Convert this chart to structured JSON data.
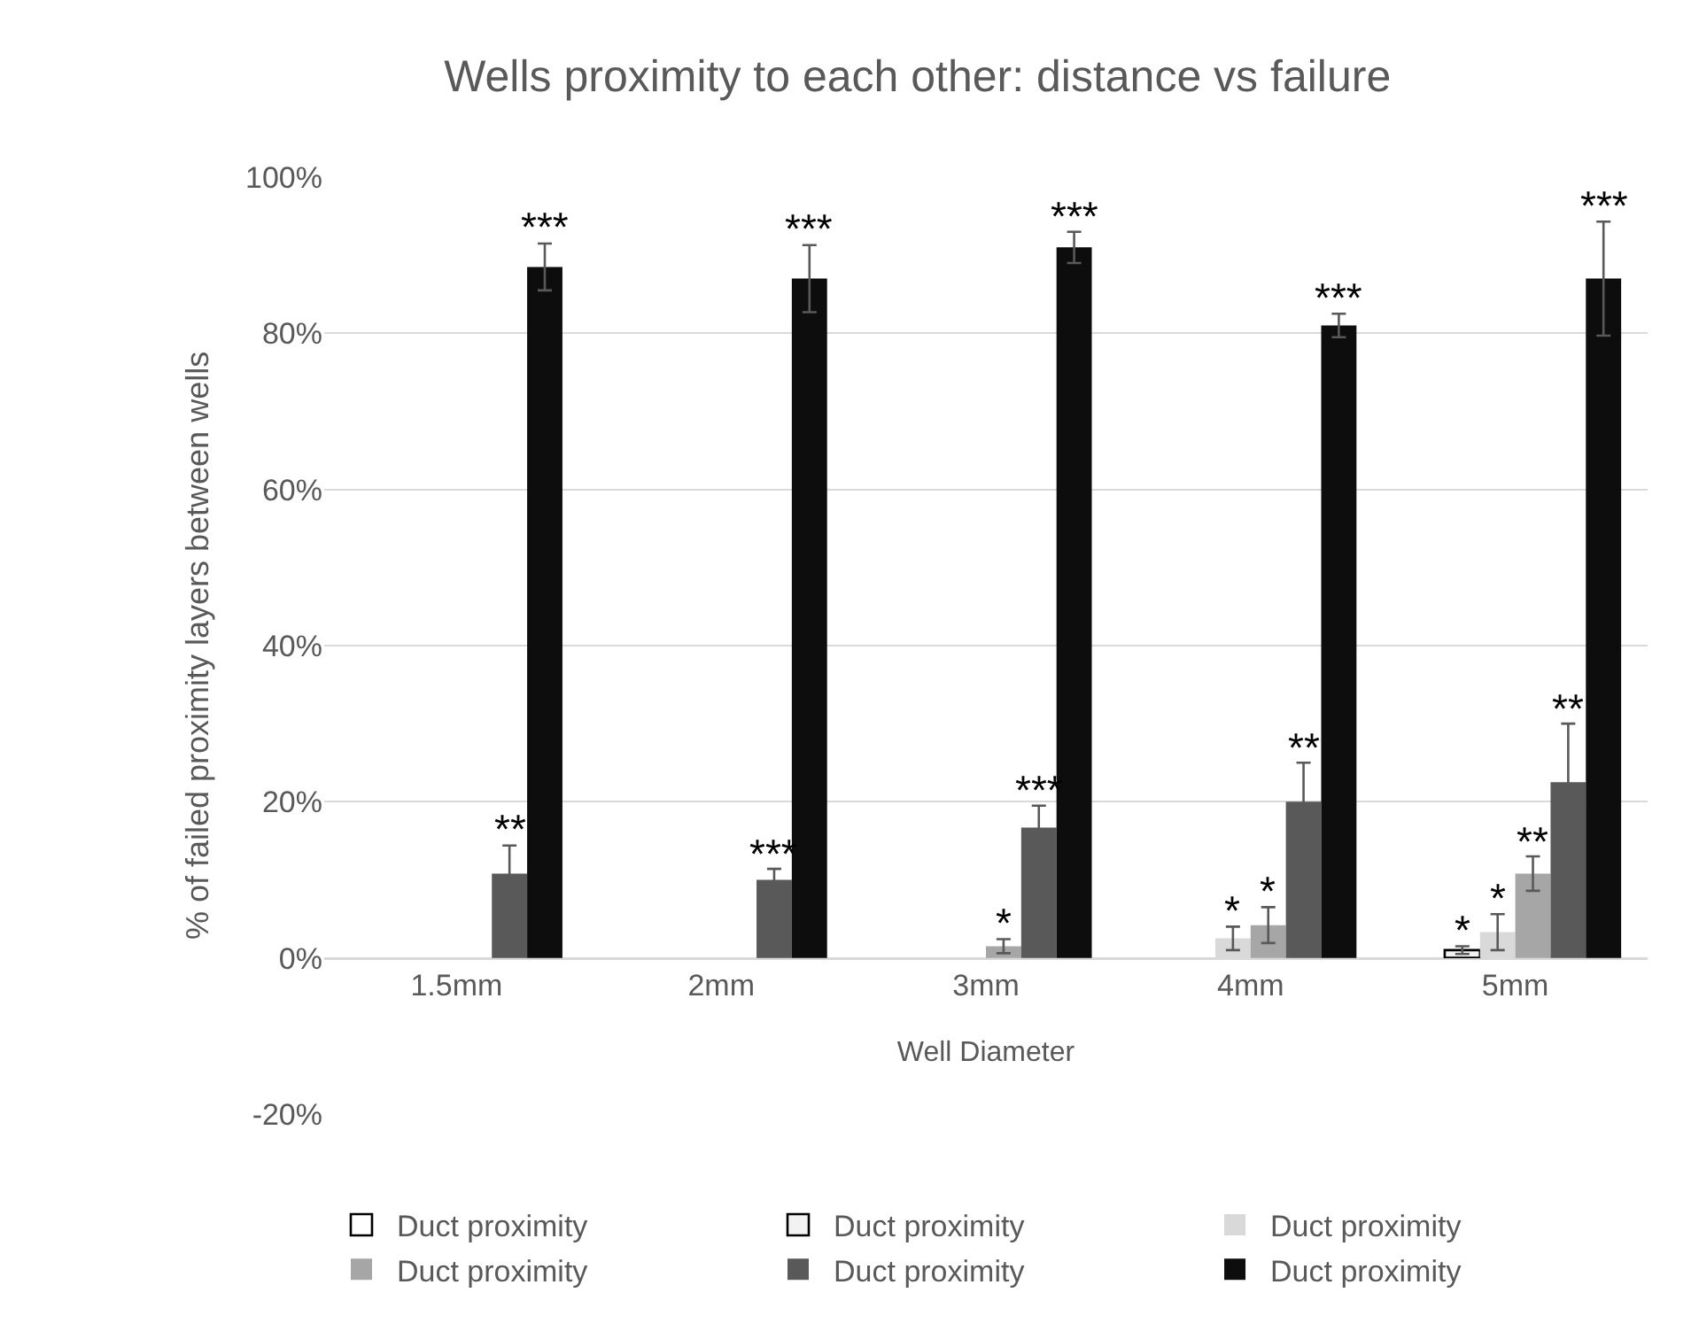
{
  "chart_data": {
    "type": "bar",
    "title": "Wells proximity to each other: distance vs failure",
    "xlabel": "Well Diameter",
    "ylabel": "% of failed proximity layers between wells",
    "categories": [
      "1.5mm",
      "2mm",
      "3mm",
      "4mm",
      "5mm"
    ],
    "series": [
      {
        "name": "Duct proximity",
        "color": "#ffffff",
        "values": [
          null,
          null,
          null,
          null,
          null
        ]
      },
      {
        "name": "Duct proximity",
        "color": "#f2f2f2",
        "values": [
          null,
          null,
          null,
          null,
          1
        ],
        "errors": [
          null,
          null,
          null,
          null,
          0.5
        ],
        "value_labels": [
          null,
          null,
          null,
          null,
          "*"
        ]
      },
      {
        "name": "Duct proximity",
        "color": "#d9d9d9",
        "values": [
          null,
          null,
          null,
          2.5,
          3.3
        ],
        "errors": [
          null,
          null,
          null,
          1.5,
          2.3
        ],
        "value_labels": [
          null,
          null,
          null,
          "*",
          "*"
        ]
      },
      {
        "name": "Duct proximity",
        "color": "#a6a6a6",
        "values": [
          null,
          null,
          1.5,
          4.2,
          10.8
        ],
        "errors": [
          null,
          null,
          0.9,
          2.3,
          2.2
        ],
        "value_labels": [
          null,
          null,
          "*",
          "*",
          "**"
        ]
      },
      {
        "name": "Duct proximity",
        "color": "#595959",
        "values": [
          10.8,
          10,
          16.7,
          20,
          22.5
        ],
        "errors": [
          3.6,
          1.4,
          2.8,
          5,
          7.5
        ],
        "value_labels": [
          "**",
          "***",
          "***",
          "**",
          "**"
        ]
      },
      {
        "name": "Duct proximity",
        "color": "#0d0d0d",
        "values": [
          88.5,
          87,
          91,
          81,
          87
        ],
        "errors": [
          3,
          4.3,
          2,
          1.5,
          7.3
        ],
        "value_labels": [
          "***",
          "***",
          "***",
          "***",
          "***"
        ]
      }
    ],
    "ylim": [
      -20,
      100
    ],
    "yticks": [
      {
        "value": -20,
        "label": "-20%"
      },
      {
        "value": 0,
        "label": "0%"
      },
      {
        "value": 20,
        "label": "20%"
      },
      {
        "value": 40,
        "label": "40%"
      },
      {
        "value": 60,
        "label": "60%"
      },
      {
        "value": 80,
        "label": "80%"
      },
      {
        "value": 100,
        "label": "100%"
      }
    ],
    "grid": "y",
    "legend": "bottom"
  }
}
